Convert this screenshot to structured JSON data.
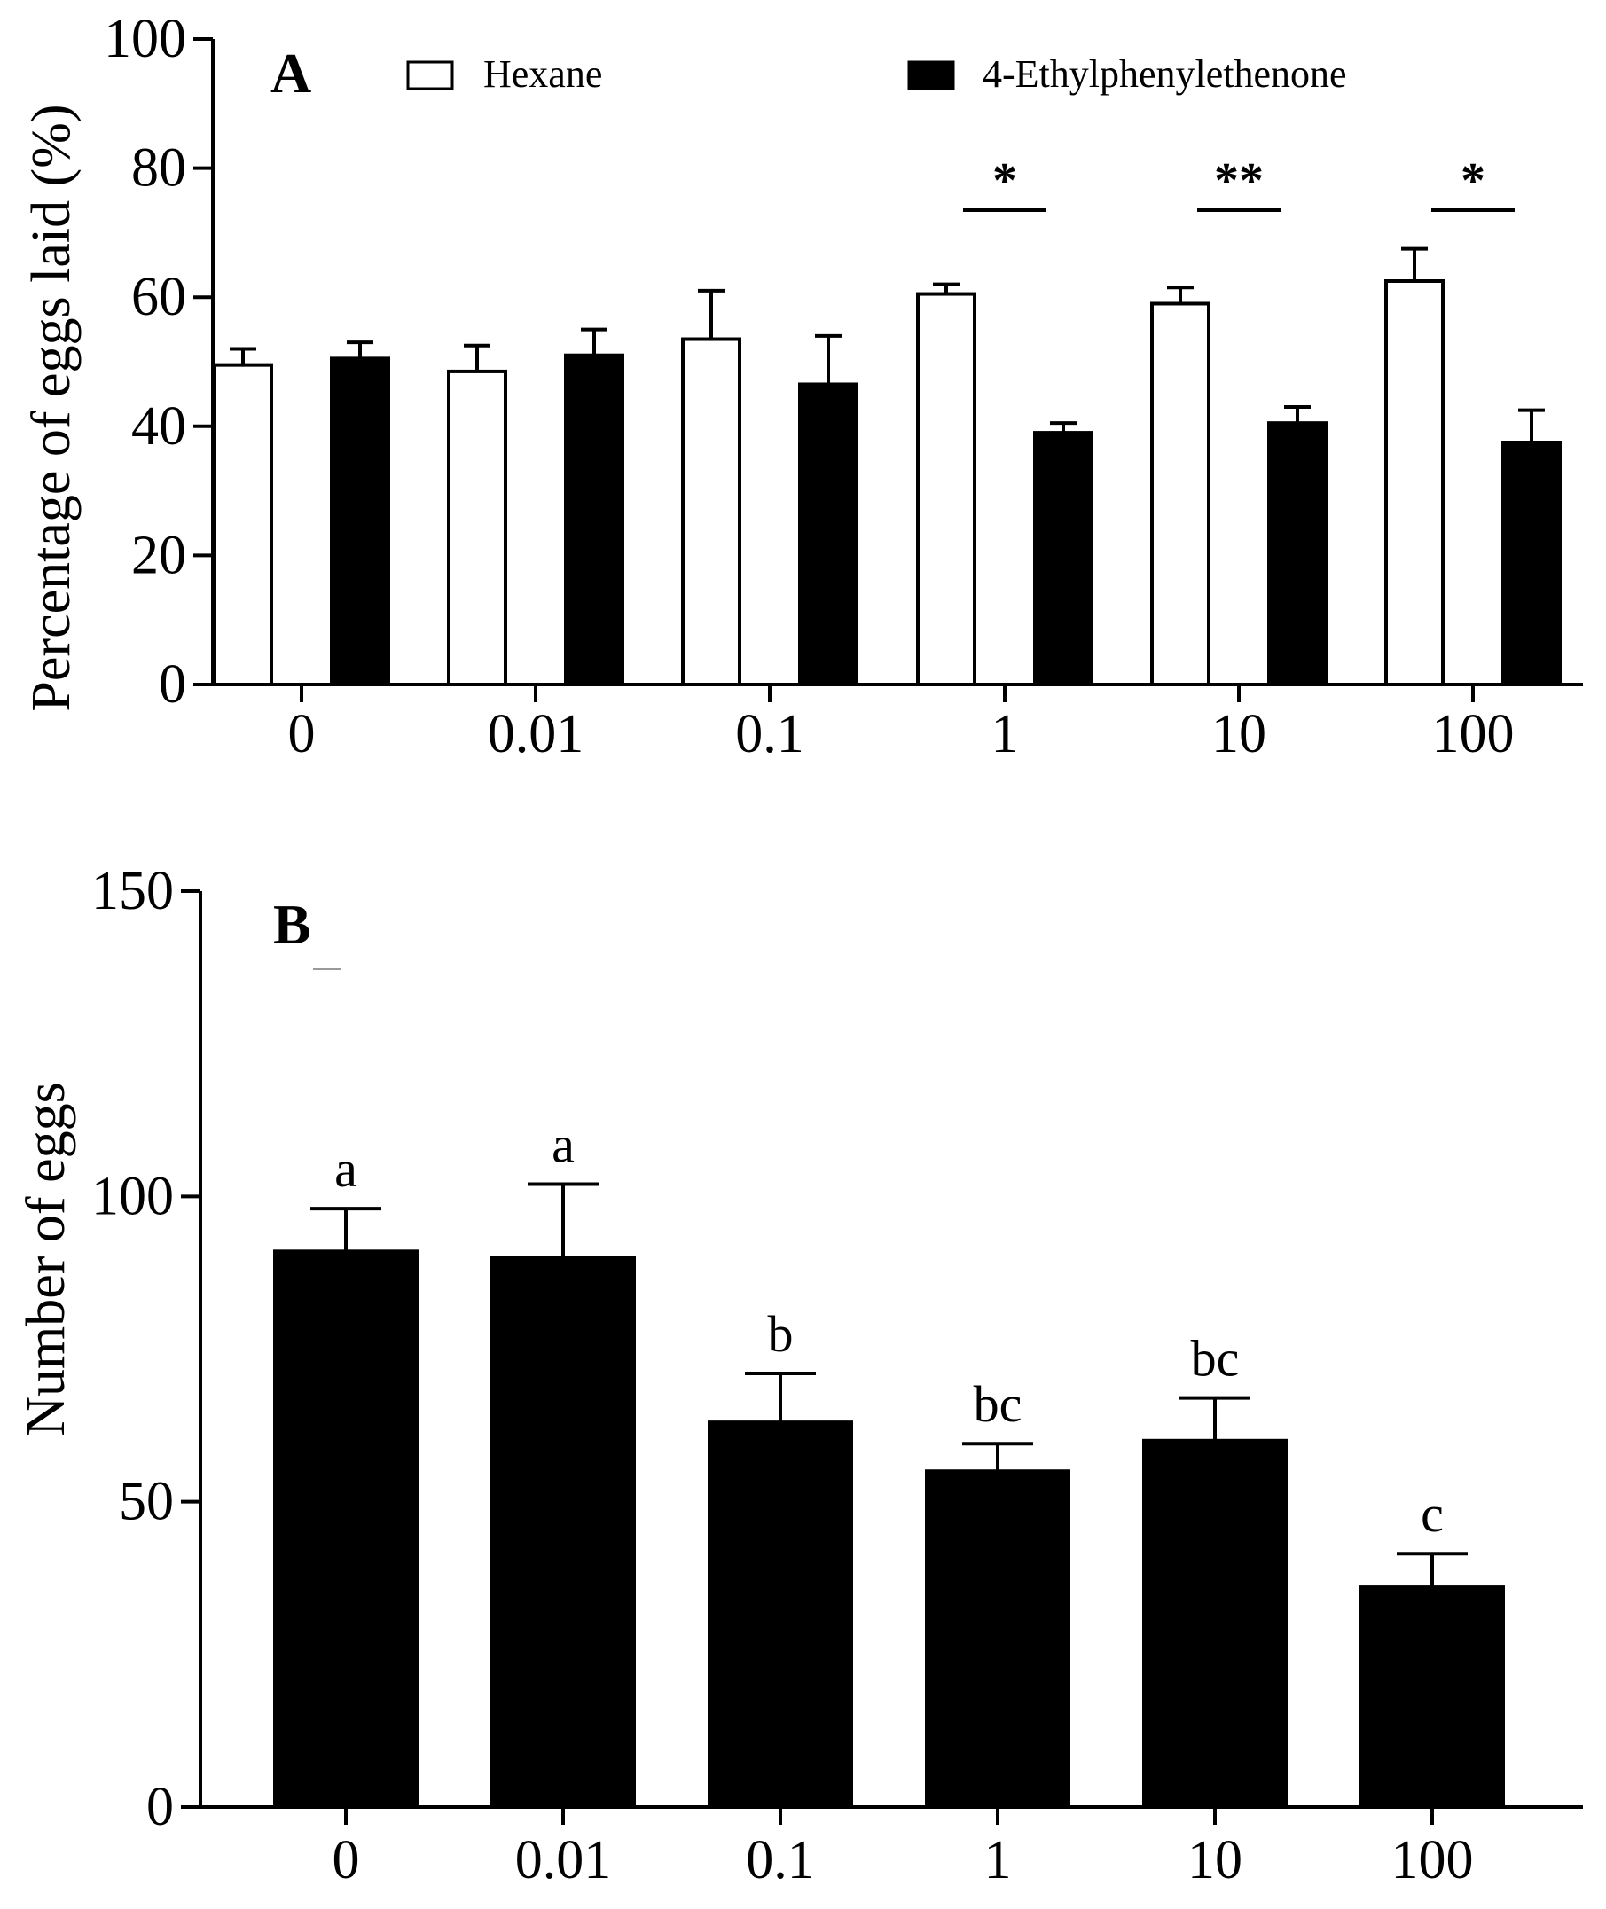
{
  "chart_data": [
    {
      "type": "bar",
      "panel": "A",
      "title": "",
      "xlabel": "",
      "ylabel": "Percentage of eggs laid (%)",
      "ylim": [
        0,
        100
      ],
      "yticks": [
        0,
        20,
        40,
        60,
        80,
        100
      ],
      "categories": [
        "0",
        "0.01",
        "0.1",
        "1",
        "10",
        "100"
      ],
      "legend_position": "top",
      "series": [
        {
          "name": "Hexane",
          "fill": "#ffffff",
          "values": [
            49.5,
            48.5,
            53.5,
            60.5,
            59,
            62.5
          ],
          "errors": [
            2.5,
            4,
            7.5,
            1.5,
            2.5,
            5
          ]
        },
        {
          "name": "4-Ethylphenylethenone",
          "fill": "#000000",
          "values": [
            50.5,
            51,
            46.5,
            39,
            40.5,
            37.5
          ],
          "errors": [
            2.5,
            4,
            7.5,
            1.5,
            2.5,
            5
          ]
        }
      ],
      "significance": [
        {
          "category": "1",
          "label": "*"
        },
        {
          "category": "10",
          "label": "**"
        },
        {
          "category": "100",
          "label": "*"
        }
      ]
    },
    {
      "type": "bar",
      "panel": "B",
      "title": "",
      "xlabel": "",
      "ylabel": "Number of eggs",
      "ylim": [
        0,
        150
      ],
      "yticks": [
        0,
        50,
        100,
        150
      ],
      "categories": [
        "0",
        "0.01",
        "0.1",
        "1",
        "10",
        "100"
      ],
      "series": [
        {
          "name": "4-Ethylphenylethenone",
          "fill": "#000000",
          "values": [
            91,
            90,
            63,
            55,
            60,
            36
          ],
          "errors": [
            7,
            12,
            8,
            4.5,
            7,
            5.5
          ]
        }
      ],
      "group_letters": [
        "a",
        "a",
        "b",
        "bc",
        "bc",
        "c"
      ]
    }
  ]
}
